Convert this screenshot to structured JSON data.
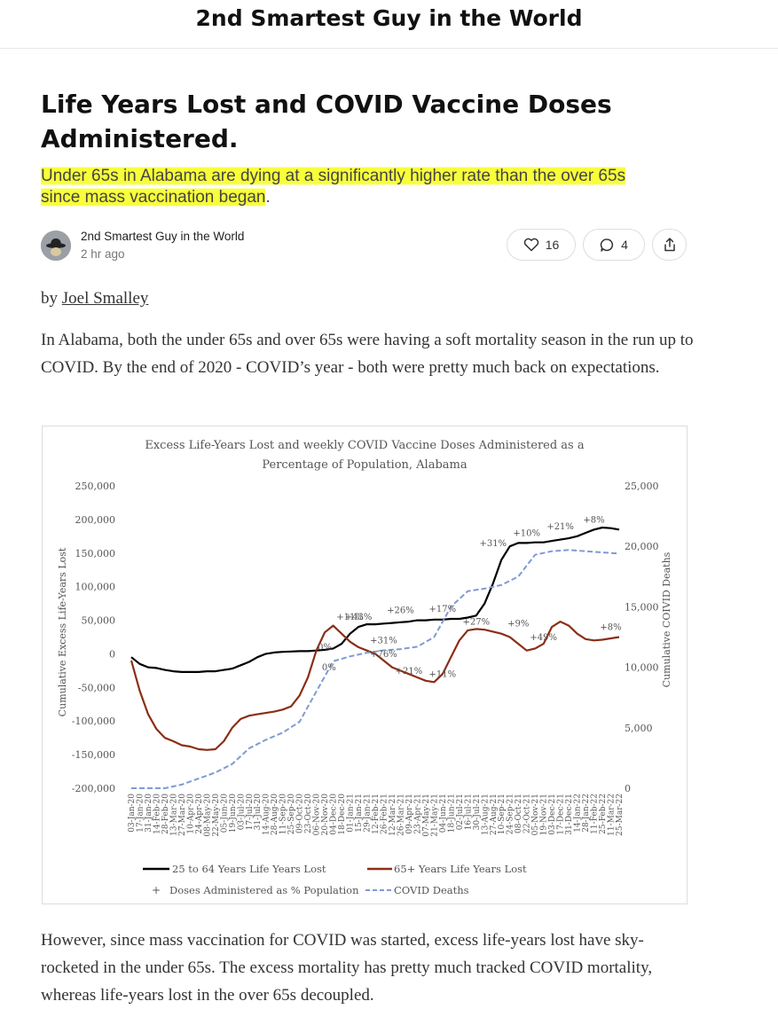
{
  "publication": {
    "title": "2nd Smartest Guy in the World"
  },
  "post": {
    "title": "Life Years Lost and COVID Vaccine Doses Administered.",
    "subtitle_line1": "Under 65s in Alabama are dying at a significantly higher rate than the over 65s",
    "subtitle_line2": "since mass vaccination began",
    "subtitle_period": ".",
    "author": "2nd Smartest Guy in the World",
    "time": "2 hr ago",
    "likes": "16",
    "comments": "4",
    "by_prefix": "by ",
    "by_author": "Joel Smalley",
    "paragraph1": "In Alabama, both the under 65s and over 65s were having a soft mortality season in the run up to COVID. By the end of 2020 - COVID’s year - both were pretty much back on expectations.",
    "paragraph2": "However, since mass vaccination for COVID was started, excess life-years lost have sky-rocketed in the under 65s. The excess mortality has pretty much tracked COVID mortality, whereas life-years lost in the over 65s decoupled."
  },
  "icons": {
    "avatar": "avatar-hat-icon",
    "like": "heart-icon",
    "comment": "comment-bubble-icon",
    "share": "share-icon"
  },
  "colors": {
    "highlight": "#f8ff3a",
    "series_under65": "#000000",
    "series_over65": "#8b2e16",
    "series_deaths": "#7f9ad4"
  },
  "chart_data": {
    "type": "line",
    "title_line1": "Excess Life-Years Lost and weekly COVID Vaccine Doses Administered as a",
    "title_line2": "Percentage of Population, Alabama",
    "ylabel_left": "Cumulative Excess Life-Years Lost",
    "ylabel_right": "Cumulative COIVID Deaths",
    "y_ticks_left": [
      "250,000",
      "200,000",
      "150,000",
      "100,000",
      "50,000",
      "0",
      "-50,000",
      "-100,000",
      "-150,000",
      "-200,000"
    ],
    "y_ticks_right": [
      "25,000",
      "20,000",
      "15,000",
      "10,000",
      "5,000",
      "0"
    ],
    "ylim_left": [
      -200000,
      250000
    ],
    "ylim_right": [
      0,
      25000
    ],
    "x_ticks": [
      "03-Jan-20",
      "17-Jan-20",
      "31-Jan-20",
      "14-Feb-20",
      "28-Feb-20",
      "13-Mar-20",
      "27-Mar-20",
      "10-Apr-20",
      "24-Apr-20",
      "08-May-20",
      "22-May-20",
      "05-Jun-20",
      "19-Jun-20",
      "03-Jul-20",
      "17-Jul-20",
      "31-Jul-20",
      "14-Aug-20",
      "28-Aug-20",
      "11-Sep-20",
      "25-Sep-20",
      "09-Oct-20",
      "23-Oct-20",
      "06-Nov-20",
      "20-Nov-20",
      "04-Dec-20",
      "18-Dec-20",
      "01-Jan-21",
      "15-Jan-21",
      "29-Jan-21",
      "12-Feb-21",
      "26-Feb-21",
      "12-Mar-21",
      "26-Mar-21",
      "09-Apr-21",
      "23-Apr-21",
      "07-May-21",
      "21-May-21",
      "04-Jun-21",
      "18-Jun-21",
      "02-Jul-21",
      "16-Jul-21",
      "30-Jul-21",
      "13-Aug-21",
      "27-Aug-21",
      "10-Sep-21",
      "24-Sep-21",
      "08-Oct-21",
      "22-Oct-21",
      "05-Nov-21",
      "19-Nov-21",
      "03-Dec-21",
      "17-Dec-21",
      "31-Dec-21",
      "14-Jan-22",
      "28-Jan-22",
      "11-Feb-22",
      "25-Feb-22",
      "11-Mar-22",
      "25-Mar-22"
    ],
    "series": [
      {
        "name": "25 to 64 Years Life Years Lost",
        "axis": "left",
        "style": "solid",
        "x": [
          0,
          1,
          2,
          3,
          4,
          5,
          6,
          7,
          8,
          9,
          10,
          11,
          12,
          13,
          14,
          15,
          16,
          17,
          18,
          19,
          20,
          21,
          22,
          23,
          24,
          25,
          26,
          27,
          28,
          29,
          30,
          31,
          32,
          33,
          34,
          35,
          36,
          37,
          38,
          39,
          40,
          41,
          42,
          43,
          44,
          45,
          46,
          47,
          48,
          49,
          50,
          51,
          52,
          53,
          54,
          55,
          56,
          57,
          58
        ],
        "values": [
          -5000,
          -15000,
          -20000,
          -21000,
          -24000,
          -26000,
          -27000,
          -27000,
          -27000,
          -26000,
          -26000,
          -24000,
          -22000,
          -17000,
          -12000,
          -5000,
          0,
          2000,
          3000,
          3500,
          4000,
          4000,
          5000,
          6000,
          8000,
          15000,
          30000,
          40000,
          44000,
          44000,
          45000,
          46000,
          47000,
          48000,
          50000,
          50000,
          51000,
          51000,
          52000,
          52000,
          54000,
          57000,
          75000,
          105000,
          140000,
          160000,
          165000,
          165000,
          166000,
          166000,
          168000,
          170000,
          172000,
          175000,
          180000,
          185000,
          188000,
          187000,
          185000
        ]
      },
      {
        "name": "65+ Years Life Years Lost",
        "axis": "left",
        "style": "solid",
        "x": [
          0,
          1,
          2,
          3,
          4,
          5,
          6,
          7,
          8,
          9,
          10,
          11,
          12,
          13,
          14,
          15,
          16,
          17,
          18,
          19,
          20,
          21,
          22,
          23,
          24,
          25,
          26,
          27,
          28,
          29,
          30,
          31,
          32,
          33,
          34,
          35,
          36,
          37,
          38,
          39,
          40,
          41,
          42,
          43,
          44,
          45,
          46,
          47,
          48,
          49,
          50,
          51,
          52,
          53,
          54,
          55,
          56,
          57,
          58
        ],
        "values": [
          -10000,
          -55000,
          -90000,
          -112000,
          -125000,
          -130000,
          -136000,
          -138000,
          -142000,
          -143000,
          -142000,
          -130000,
          -110000,
          -97000,
          -92000,
          -90000,
          -88000,
          -86000,
          -83000,
          -78000,
          -62000,
          -35000,
          5000,
          32000,
          42000,
          30000,
          18000,
          10000,
          5000,
          0,
          -10000,
          -20000,
          -25000,
          -30000,
          -35000,
          -40000,
          -42000,
          -30000,
          -5000,
          20000,
          35000,
          37000,
          36000,
          33000,
          30000,
          25000,
          15000,
          5000,
          8000,
          15000,
          40000,
          48000,
          42000,
          30000,
          22000,
          20000,
          21000,
          23000,
          25000
        ]
      },
      {
        "name": "COVID Deaths",
        "axis": "right",
        "style": "dashed",
        "x": [
          0,
          2,
          4,
          6,
          8,
          10,
          12,
          14,
          16,
          18,
          20,
          22,
          24,
          26,
          28,
          30,
          32,
          34,
          36,
          38,
          40,
          42,
          44,
          46,
          48,
          50,
          52,
          54,
          56,
          58
        ],
        "values": [
          0,
          0,
          0,
          300,
          800,
          1300,
          2000,
          3300,
          4000,
          4600,
          5500,
          8000,
          10500,
          10900,
          11200,
          11400,
          11500,
          11700,
          12500,
          15000,
          16300,
          16500,
          16800,
          17500,
          19300,
          19600,
          19700,
          19600,
          19500,
          19400
        ]
      }
    ],
    "legend": [
      "25 to 64 Years Life Years Lost",
      "65+ Years Life Years Lost",
      "Doses Administered as % Population",
      "COVID Deaths"
    ],
    "annotations": [
      {
        "text": "0%",
        "x": 23
      },
      {
        "text": "0%",
        "x": 23.5
      },
      {
        "text": "+11%",
        "x": 26
      },
      {
        "text": "+43%",
        "x": 27
      },
      {
        "text": "+31%",
        "x": 30
      },
      {
        "text": "+76%",
        "x": 30
      },
      {
        "text": "+26%",
        "x": 32
      },
      {
        "text": "+21%",
        "x": 33
      },
      {
        "text": "+17%",
        "x": 37
      },
      {
        "text": "+11%",
        "x": 37
      },
      {
        "text": "+27%",
        "x": 41
      },
      {
        "text": "+31%",
        "x": 43
      },
      {
        "text": "+9%",
        "x": 46
      },
      {
        "text": "+10%",
        "x": 47
      },
      {
        "text": "+49%",
        "x": 49
      },
      {
        "text": "+21%",
        "x": 51
      },
      {
        "text": "+8%",
        "x": 55
      },
      {
        "text": "+8%",
        "x": 57
      }
    ],
    "grid": false,
    "legend_position": "bottom"
  }
}
